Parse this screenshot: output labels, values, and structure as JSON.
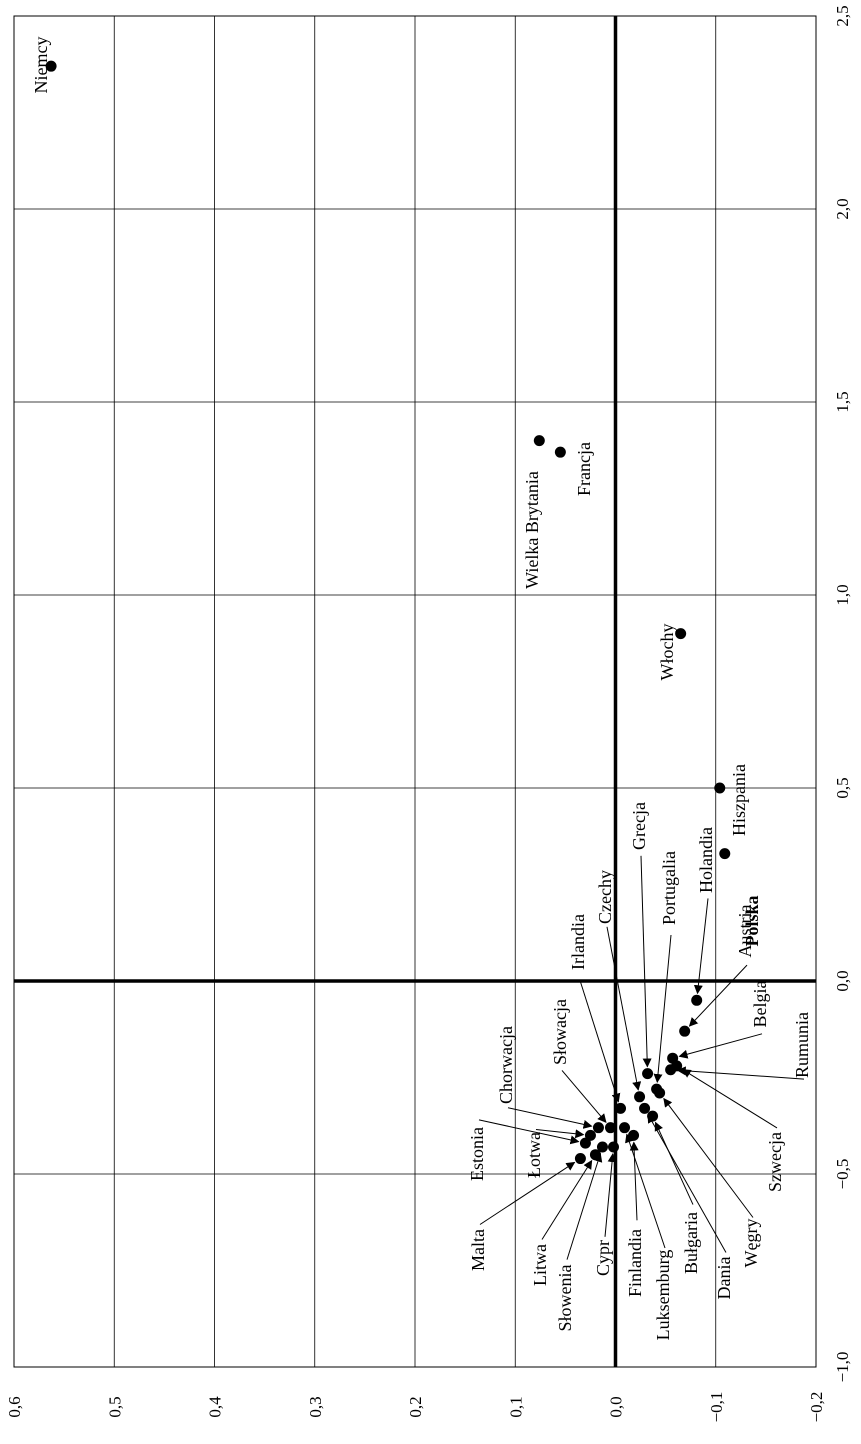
{
  "chart_data": {
    "type": "scatter",
    "orientation": "rotated-90-ccw",
    "title": "",
    "xlabel": "",
    "ylabel": "",
    "xlim": [
      -1.0,
      2.5
    ],
    "ylim": [
      -0.2,
      0.6
    ],
    "x_ticks": [
      "−1,0",
      "−0,5",
      "0,0",
      "0,5",
      "1,0",
      "1,5",
      "2,0",
      "2,5"
    ],
    "y_ticks": [
      "−0,2",
      "−0,1",
      "0,0",
      "0,1",
      "0,2",
      "0,3",
      "0,4",
      "0,5",
      "0,6"
    ],
    "grid": true,
    "series": [
      {
        "points": [
          {
            "label": "Niemcy",
            "x": 2.37,
            "y": 0.563
          },
          {
            "label": "Wielka Brytania",
            "x": 1.4,
            "y": 0.076
          },
          {
            "label": "Francja",
            "x": 1.37,
            "y": 0.055
          },
          {
            "label": "Włochy",
            "x": 0.9,
            "y": -0.065
          },
          {
            "label": "Hiszpania",
            "x": 0.5,
            "y": -0.104
          },
          {
            "label": "Polska",
            "x": 0.33,
            "y": -0.109
          },
          {
            "label": "Holandia",
            "x": -0.05,
            "y": -0.081
          },
          {
            "label": "Austria",
            "x": -0.13,
            "y": -0.069
          },
          {
            "label": "Belgia",
            "x": -0.2,
            "y": -0.057
          },
          {
            "label": "Rumunia",
            "x": -0.23,
            "y": -0.055
          },
          {
            "label": "Szwecja",
            "x": -0.22,
            "y": -0.061
          },
          {
            "label": "Grecja",
            "x": -0.24,
            "y": -0.032
          },
          {
            "label": "Portugalia",
            "x": -0.28,
            "y": -0.041
          },
          {
            "label": "Węgry",
            "x": -0.29,
            "y": -0.044
          },
          {
            "label": "Dania",
            "x": -0.33,
            "y": -0.029
          },
          {
            "label": "Bułgaria",
            "x": -0.35,
            "y": -0.037
          },
          {
            "label": "Czechy",
            "x": -0.3,
            "y": -0.024
          },
          {
            "label": "Luksemburg",
            "x": -0.38,
            "y": -0.009
          },
          {
            "label": "Finlandia",
            "x": -0.4,
            "y": -0.018
          },
          {
            "label": "Irlandia",
            "x": -0.33,
            "y": -0.005
          },
          {
            "label": "Słowacja",
            "x": -0.38,
            "y": 0.005
          },
          {
            "label": "Chorwacja",
            "x": -0.38,
            "y": 0.017
          },
          {
            "label": "Cypr",
            "x": -0.43,
            "y": 0.002
          },
          {
            "label": "Łotwa",
            "x": -0.4,
            "y": 0.025
          },
          {
            "label": "Estonia",
            "x": -0.42,
            "y": 0.03
          },
          {
            "label": "Słowenia",
            "x": -0.43,
            "y": 0.013
          },
          {
            "label": "Litwa",
            "x": -0.45,
            "y": 0.02
          },
          {
            "label": "Malta",
            "x": -0.46,
            "y": 0.035
          }
        ]
      }
    ]
  }
}
